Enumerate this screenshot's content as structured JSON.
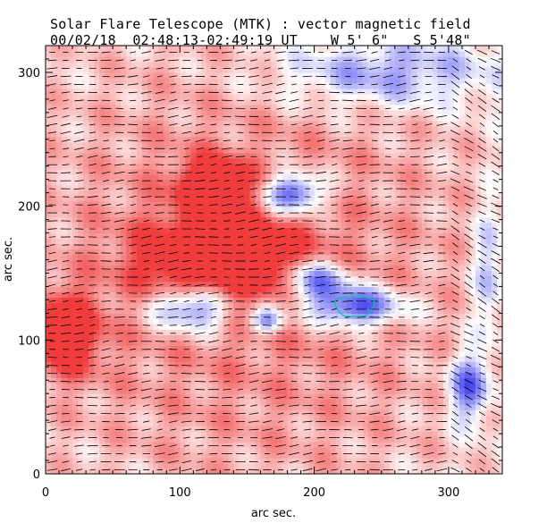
{
  "header": {
    "title": "Solar Flare Telescope (MTK) : vector magnetic field",
    "subtitle_date": "00/02/18",
    "subtitle_time": "02:48:13-02:49:19 UT",
    "subtitle_lon": "W 5' 6\"",
    "subtitle_lat": "S 5'48\""
  },
  "chart_data": {
    "type": "heatmap",
    "title": "Solar Flare Telescope (MTK) : vector magnetic field",
    "xlabel": "arc sec.",
    "ylabel": "arc sec.",
    "xlim": [
      0,
      340
    ],
    "ylim": [
      0,
      320
    ],
    "x_ticks": [
      0,
      100,
      200,
      300
    ],
    "y_ticks": [
      0,
      100,
      200,
      300
    ],
    "x_tick_labels": [
      "0",
      "100",
      "200",
      "300"
    ],
    "y_tick_labels": [
      "0",
      "100",
      "200",
      "300"
    ],
    "colormap": {
      "positive": "#f03c3c",
      "negative": "#3c3cf0",
      "neutral": "#ffffff"
    },
    "contour_color": "#00c8a0",
    "blobs": [
      {
        "name": "positive-main",
        "cx": 130,
        "cy": 160,
        "rx": 55,
        "ry": 30,
        "sign": 1,
        "strength": 1.0
      },
      {
        "name": "positive-upper",
        "cx": 125,
        "cy": 215,
        "rx": 25,
        "ry": 20,
        "sign": 1,
        "strength": 0.9
      },
      {
        "name": "positive-left",
        "cx": 15,
        "cy": 105,
        "rx": 25,
        "ry": 30,
        "sign": 1,
        "strength": 0.8
      },
      {
        "name": "positive-background",
        "cx": 150,
        "cy": 150,
        "rx": 220,
        "ry": 220,
        "sign": 1,
        "strength": 0.45
      },
      {
        "name": "negative-center-right",
        "cx": 230,
        "cy": 125,
        "rx": 35,
        "ry": 15,
        "sign": -1,
        "strength": 1.0
      },
      {
        "name": "negative-center",
        "cx": 200,
        "cy": 145,
        "rx": 25,
        "ry": 15,
        "sign": -1,
        "strength": 0.9
      },
      {
        "name": "negative-lower-left",
        "cx": 110,
        "cy": 125,
        "rx": 30,
        "ry": 18,
        "sign": -1,
        "strength": 1.0
      },
      {
        "name": "negative-small",
        "cx": 165,
        "cy": 115,
        "rx": 12,
        "ry": 10,
        "sign": -1,
        "strength": 0.8
      },
      {
        "name": "negative-upper",
        "cx": 185,
        "cy": 210,
        "rx": 22,
        "ry": 15,
        "sign": -1,
        "strength": 1.0
      },
      {
        "name": "negative-top-right",
        "cx": 250,
        "cy": 300,
        "rx": 80,
        "ry": 25,
        "sign": -1,
        "strength": 0.55
      },
      {
        "name": "negative-right-edge",
        "cx": 315,
        "cy": 65,
        "rx": 15,
        "ry": 25,
        "sign": -1,
        "strength": 0.75
      },
      {
        "name": "negative-far-right",
        "cx": 330,
        "cy": 150,
        "rx": 12,
        "ry": 50,
        "sign": -1,
        "strength": 0.4
      }
    ],
    "vector_field": {
      "x_spacing": 10,
      "y_spacing": 6,
      "dominant_angle_deg": 5,
      "description": "transverse field vectors drawn as short line segments"
    }
  }
}
